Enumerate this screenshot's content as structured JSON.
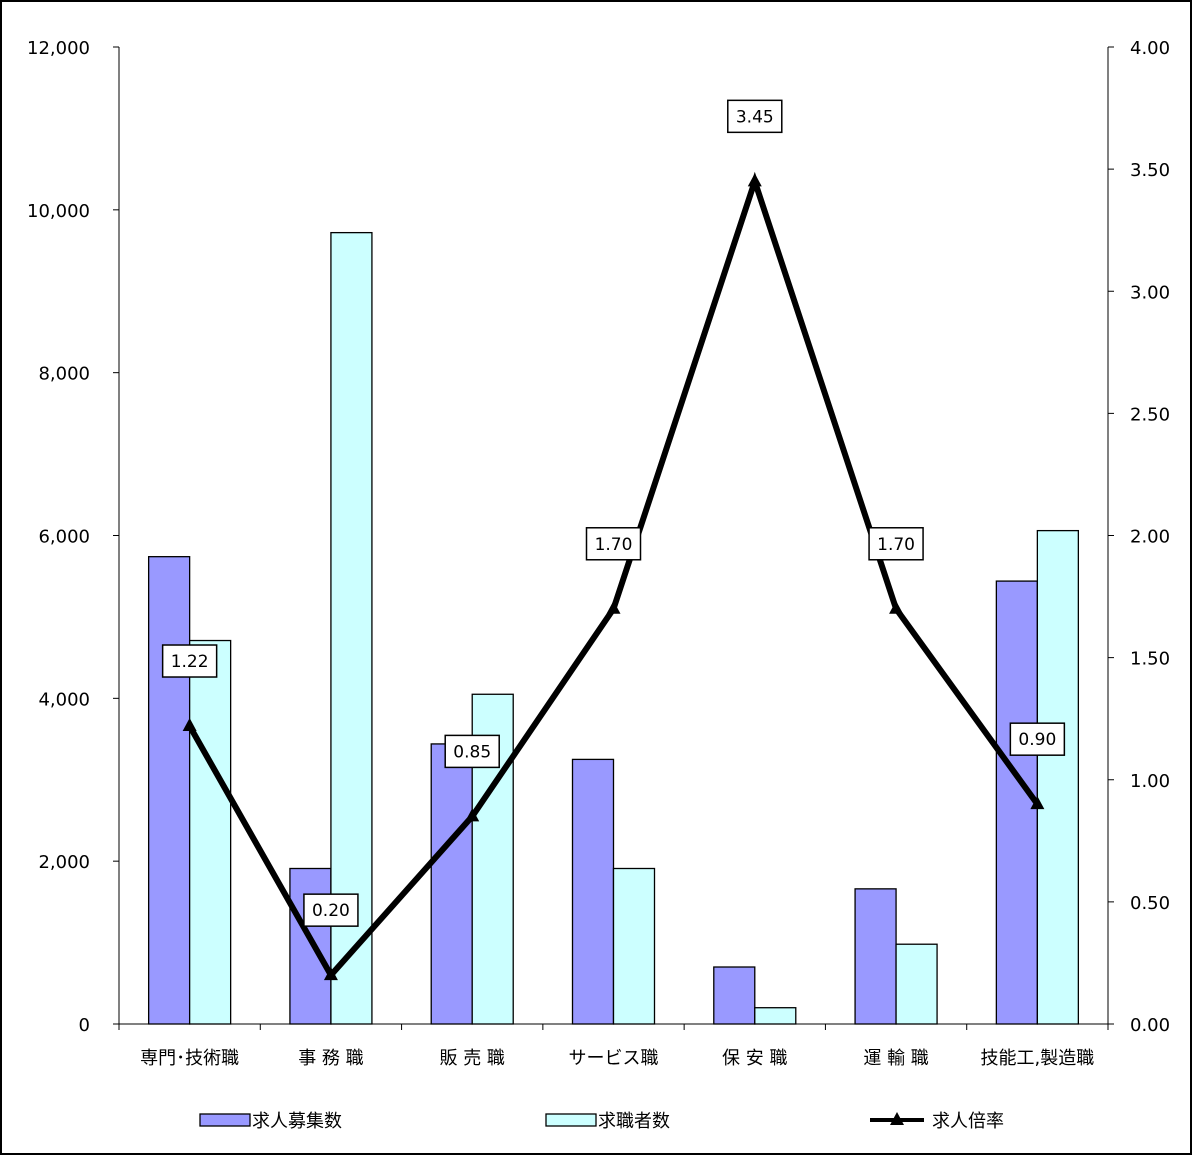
{
  "chart_data": {
    "type": "bar",
    "categories": [
      "専門･技術職",
      "事 務 職",
      "販 売 職",
      "サービス職",
      "保 安 職",
      "運 輸 職",
      "技能工,製造職"
    ],
    "series": [
      {
        "name": "求人募集数",
        "kind": "bar",
        "axis": "left",
        "color": "#9999ff",
        "values": [
          5740,
          1910,
          3440,
          3250,
          700,
          1660,
          5440
        ]
      },
      {
        "name": "求職者数",
        "kind": "bar",
        "axis": "left",
        "color": "#ccffff",
        "values": [
          4710,
          9720,
          4050,
          1910,
          200,
          980,
          6060
        ]
      },
      {
        "name": "求人倍率",
        "kind": "line",
        "axis": "right",
        "color": "#000000",
        "marker": "triangle",
        "values": [
          1.22,
          0.2,
          0.85,
          1.7,
          3.45,
          1.7,
          0.9
        ]
      }
    ],
    "data_labels": [
      "1.22",
      "0.20",
      "0.85",
      "1.70",
      "3.45",
      "1.70",
      "0.90"
    ],
    "y_left": {
      "min": 0,
      "max": 12000,
      "step": 2000,
      "tick_labels": [
        "0",
        "2,000",
        "4,000",
        "6,000",
        "8,000",
        "10,000",
        "12,000"
      ]
    },
    "y_right": {
      "min": 0,
      "max": 4,
      "step": 0.5,
      "tick_labels": [
        "0.00",
        "0.50",
        "1.00",
        "1.50",
        "2.00",
        "2.50",
        "3.00",
        "3.50",
        "4.00"
      ]
    },
    "legend": [
      "求人募集数",
      "求職者数",
      "求人倍率"
    ],
    "legend_position": "bottom",
    "grid": false
  }
}
